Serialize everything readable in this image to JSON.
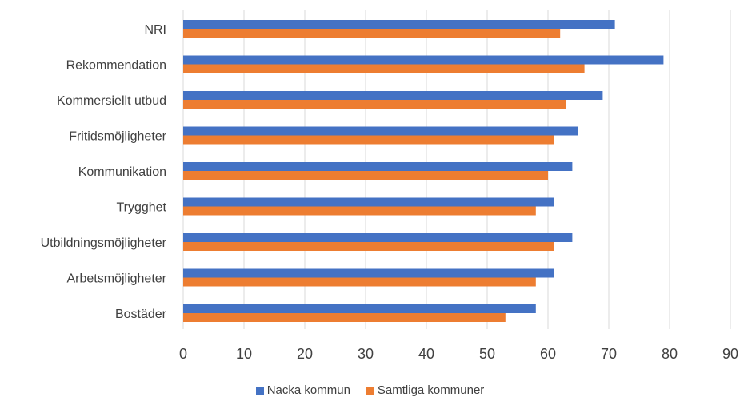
{
  "chart_data": {
    "type": "bar",
    "orientation": "horizontal",
    "categories": [
      "NRI",
      "Rekommendation",
      "Kommersiellt utbud",
      "Fritidsmöjligheter",
      "Kommunikation",
      "Trygghet",
      "Utbildningsmöjligheter",
      "Arbetsmöjligheter",
      "Bostäder"
    ],
    "series": [
      {
        "name": "Nacka kommun",
        "color": "#4472C4",
        "values": [
          71,
          79,
          69,
          65,
          64,
          61,
          64,
          61,
          58
        ]
      },
      {
        "name": "Samtliga kommuner",
        "color": "#ED7D31",
        "values": [
          62,
          66,
          63,
          61,
          60,
          58,
          61,
          58,
          53
        ]
      }
    ],
    "xlim": [
      0,
      90
    ],
    "xticks": [
      "0",
      "10",
      "20",
      "30",
      "40",
      "50",
      "60",
      "70",
      "80",
      "90"
    ],
    "grid": true,
    "legend_position": "bottom"
  }
}
